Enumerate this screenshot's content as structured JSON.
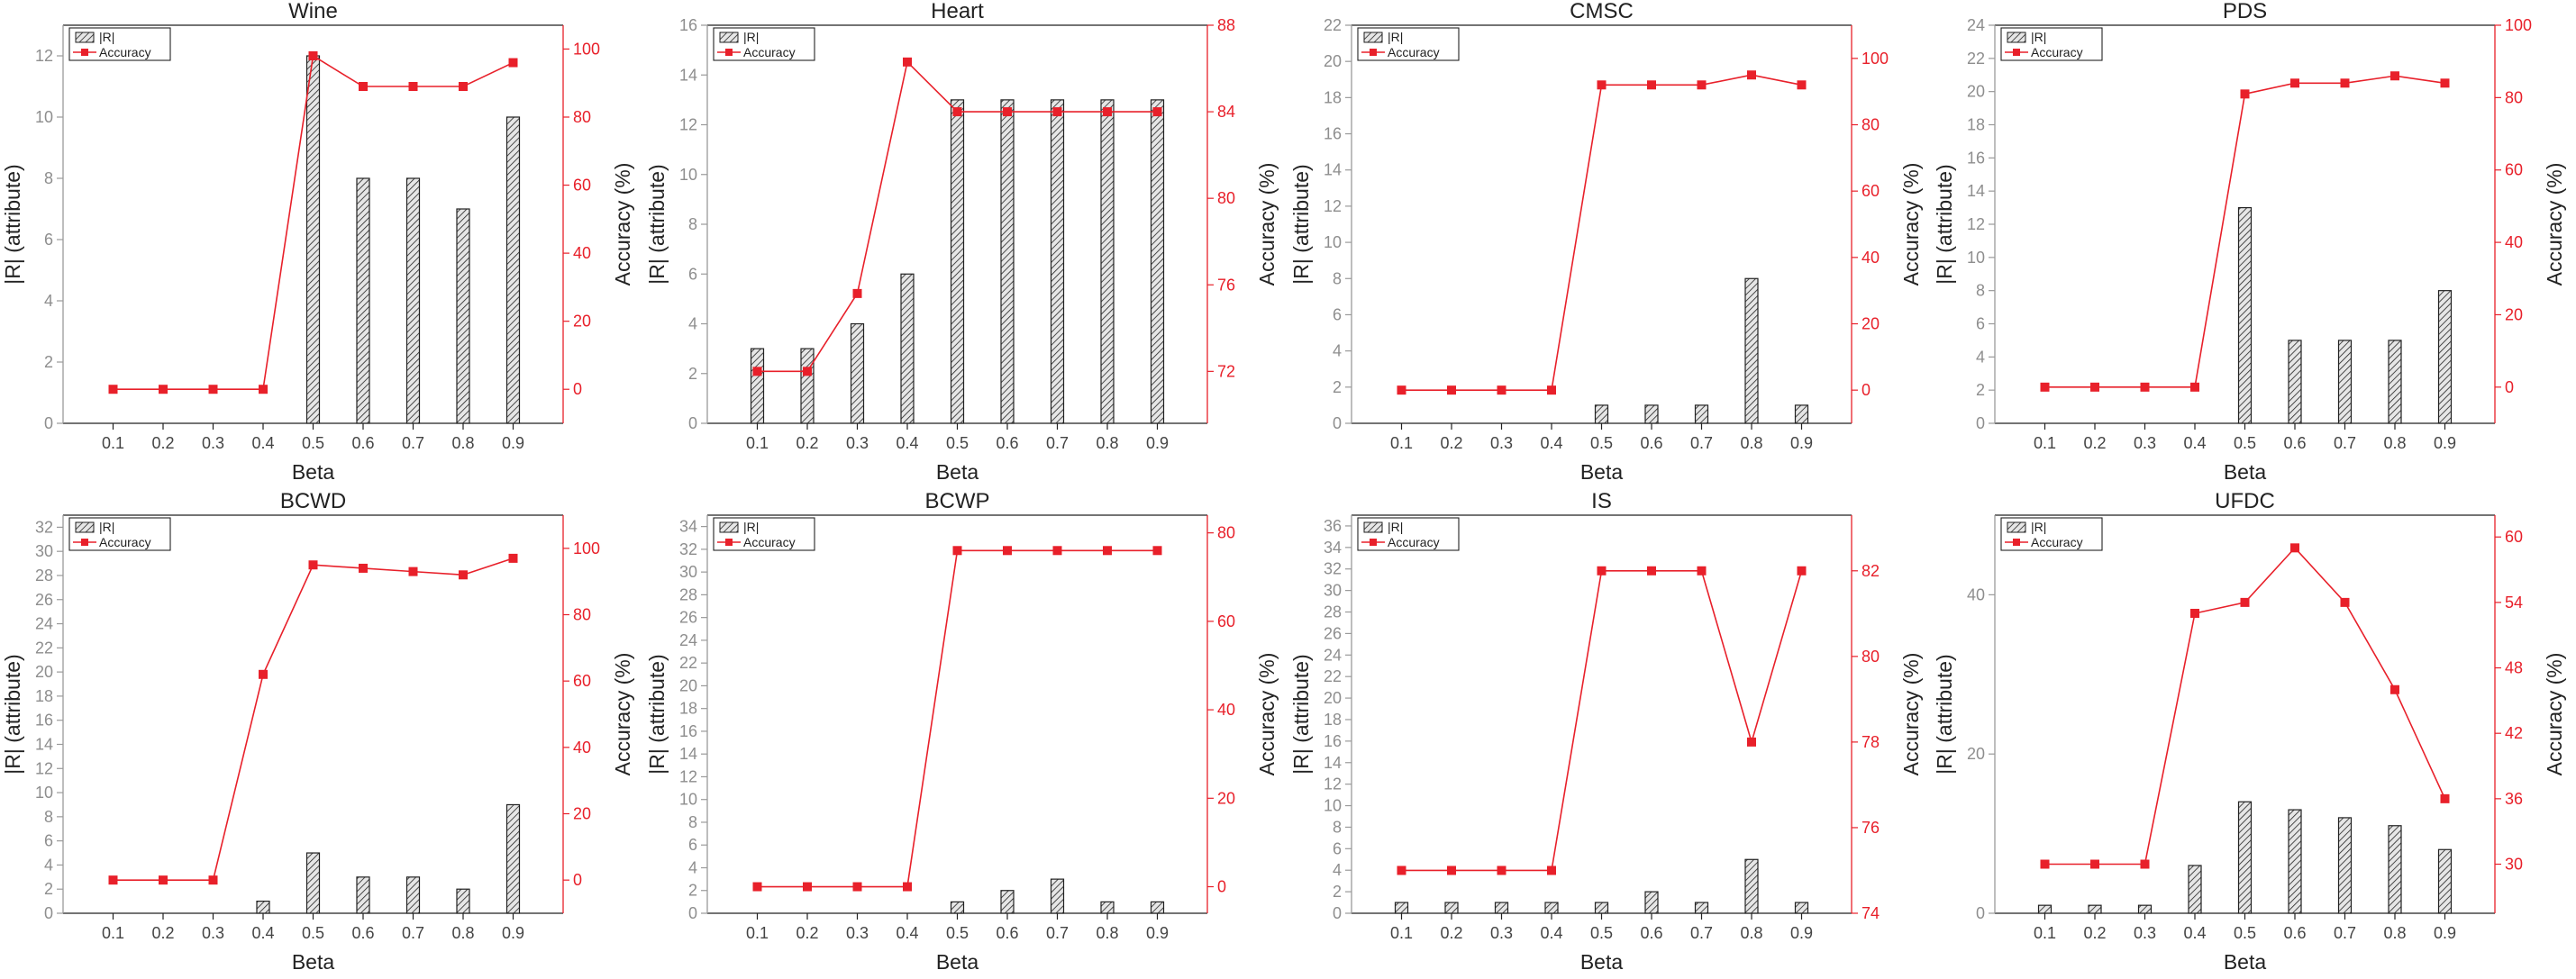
{
  "figure": {
    "x_label": "Beta",
    "left_axis_label": "|R| (attribute)",
    "right_axis_label": "Accuracy (%)",
    "legend": {
      "bar": "|R|",
      "line": "Accuracy"
    },
    "colors": {
      "accuracy": "#e8202a",
      "bar_stroke": "#222222",
      "bar_fill": "#cfcfcf",
      "left_axis": "#9a9a9a"
    }
  },
  "chart_data": [
    {
      "type": "bar+line",
      "title": "Wine",
      "xlabel": "Beta",
      "ylabel": "|R| (attribute)",
      "y2label": "Accuracy (%)",
      "categories": [
        "0.1",
        "0.2",
        "0.3",
        "0.4",
        "0.5",
        "0.6",
        "0.7",
        "0.8",
        "0.9"
      ],
      "ylim": [
        0,
        13
      ],
      "yticks": [
        0,
        2,
        4,
        6,
        8,
        10,
        12
      ],
      "y2lim": [
        -10,
        107
      ],
      "y2ticks": [
        0,
        20,
        40,
        60,
        80,
        100
      ],
      "series": [
        {
          "name": "|R|",
          "kind": "bar",
          "axis": "left",
          "values": [
            null,
            null,
            null,
            null,
            12,
            8,
            8,
            7,
            10
          ]
        },
        {
          "name": "Accuracy",
          "kind": "line",
          "axis": "right",
          "values": [
            0,
            0,
            0,
            0,
            98,
            89,
            89,
            89,
            96
          ]
        }
      ]
    },
    {
      "type": "bar+line",
      "title": "Heart",
      "xlabel": "Beta",
      "ylabel": "|R| (attribute)",
      "y2label": "Accuracy (%)",
      "categories": [
        "0.1",
        "0.2",
        "0.3",
        "0.4",
        "0.5",
        "0.6",
        "0.7",
        "0.8",
        "0.9"
      ],
      "ylim": [
        0,
        16
      ],
      "yticks": [
        0,
        2,
        4,
        6,
        8,
        10,
        12,
        14,
        16
      ],
      "y2lim": [
        69.6,
        88
      ],
      "y2ticks": [
        72,
        76,
        80,
        84,
        88
      ],
      "series": [
        {
          "name": "|R|",
          "kind": "bar",
          "axis": "left",
          "values": [
            3,
            3,
            4,
            6,
            13,
            13,
            13,
            13,
            13
          ]
        },
        {
          "name": "Accuracy",
          "kind": "line",
          "axis": "right",
          "values": [
            72,
            72,
            75.6,
            86.3,
            84,
            84,
            84,
            84,
            84
          ]
        }
      ]
    },
    {
      "type": "bar+line",
      "title": "CMSC",
      "xlabel": "Beta",
      "ylabel": "|R| (attribute)",
      "y2label": "Accuracy (%)",
      "categories": [
        "0.1",
        "0.2",
        "0.3",
        "0.4",
        "0.5",
        "0.6",
        "0.7",
        "0.8",
        "0.9"
      ],
      "ylim": [
        0,
        22
      ],
      "yticks": [
        0,
        2,
        4,
        6,
        8,
        10,
        12,
        14,
        16,
        18,
        20,
        22
      ],
      "y2lim": [
        -10,
        110
      ],
      "y2ticks": [
        0,
        20,
        40,
        60,
        80,
        100
      ],
      "series": [
        {
          "name": "|R|",
          "kind": "bar",
          "axis": "left",
          "values": [
            null,
            null,
            null,
            null,
            1,
            1,
            1,
            8,
            1
          ]
        },
        {
          "name": "Accuracy",
          "kind": "line",
          "axis": "right",
          "values": [
            0,
            0,
            0,
            0,
            92,
            92,
            92,
            95,
            92
          ]
        }
      ]
    },
    {
      "type": "bar+line",
      "title": "PDS",
      "xlabel": "Beta",
      "ylabel": "|R| (attribute)",
      "y2label": "Accuracy (%)",
      "categories": [
        "0.1",
        "0.2",
        "0.3",
        "0.4",
        "0.5",
        "0.6",
        "0.7",
        "0.8",
        "0.9"
      ],
      "ylim": [
        0,
        24
      ],
      "yticks": [
        0,
        2,
        4,
        6,
        8,
        10,
        12,
        14,
        16,
        18,
        20,
        22,
        24
      ],
      "y2lim": [
        -10,
        100
      ],
      "y2ticks": [
        0,
        20,
        40,
        60,
        80,
        100
      ],
      "series": [
        {
          "name": "|R|",
          "kind": "bar",
          "axis": "left",
          "values": [
            null,
            null,
            null,
            null,
            13,
            5,
            5,
            5,
            8
          ]
        },
        {
          "name": "Accuracy",
          "kind": "line",
          "axis": "right",
          "values": [
            0,
            0,
            0,
            0,
            81,
            84,
            84,
            86,
            84
          ]
        }
      ]
    },
    {
      "type": "bar+line",
      "title": "BCWD",
      "xlabel": "Beta",
      "ylabel": "|R| (attribute)",
      "y2label": "Accuracy (%)",
      "categories": [
        "0.1",
        "0.2",
        "0.3",
        "0.4",
        "0.5",
        "0.6",
        "0.7",
        "0.8",
        "0.9"
      ],
      "ylim": [
        0,
        33
      ],
      "yticks": [
        0,
        2,
        4,
        6,
        8,
        10,
        12,
        14,
        16,
        18,
        20,
        22,
        24,
        26,
        28,
        30,
        32
      ],
      "y2lim": [
        -10,
        110
      ],
      "y2ticks": [
        0,
        20,
        40,
        60,
        80,
        100
      ],
      "series": [
        {
          "name": "|R|",
          "kind": "bar",
          "axis": "left",
          "values": [
            null,
            null,
            null,
            1,
            5,
            3,
            3,
            2,
            9
          ]
        },
        {
          "name": "Accuracy",
          "kind": "line",
          "axis": "right",
          "values": [
            0,
            0,
            0,
            62,
            95,
            94,
            93,
            92,
            97
          ]
        }
      ]
    },
    {
      "type": "bar+line",
      "title": "BCWP",
      "xlabel": "Beta",
      "ylabel": "|R| (attribute)",
      "y2label": "Accuracy (%)",
      "categories": [
        "0.1",
        "0.2",
        "0.3",
        "0.4",
        "0.5",
        "0.6",
        "0.7",
        "0.8",
        "0.9"
      ],
      "ylim": [
        0,
        35
      ],
      "yticks": [
        0,
        2,
        4,
        6,
        8,
        10,
        12,
        14,
        16,
        18,
        20,
        22,
        24,
        26,
        28,
        30,
        32,
        34
      ],
      "y2lim": [
        -6,
        84
      ],
      "y2ticks": [
        0,
        20,
        40,
        60,
        80
      ],
      "series": [
        {
          "name": "|R|",
          "kind": "bar",
          "axis": "left",
          "values": [
            null,
            null,
            null,
            null,
            1,
            2,
            3,
            1,
            1
          ]
        },
        {
          "name": "Accuracy",
          "kind": "line",
          "axis": "right",
          "values": [
            0,
            0,
            0,
            0,
            76,
            76,
            76,
            76,
            76
          ]
        }
      ]
    },
    {
      "type": "bar+line",
      "title": "IS",
      "xlabel": "Beta",
      "ylabel": "|R| (attribute)",
      "y2label": "Accuracy (%)",
      "categories": [
        "0.1",
        "0.2",
        "0.3",
        "0.4",
        "0.5",
        "0.6",
        "0.7",
        "0.8",
        "0.9"
      ],
      "ylim": [
        0,
        37
      ],
      "yticks": [
        0,
        2,
        4,
        6,
        8,
        10,
        12,
        14,
        16,
        18,
        20,
        22,
        24,
        26,
        28,
        30,
        32,
        34,
        36
      ],
      "y2lim": [
        74,
        83.3
      ],
      "y2ticks": [
        74,
        76,
        78,
        80,
        82
      ],
      "series": [
        {
          "name": "|R|",
          "kind": "bar",
          "axis": "left",
          "values": [
            1,
            1,
            1,
            1,
            1,
            2,
            1,
            5,
            1
          ]
        },
        {
          "name": "Accuracy",
          "kind": "line",
          "axis": "right",
          "values": [
            75,
            75,
            75,
            75,
            82,
            82,
            82,
            78,
            82
          ]
        }
      ]
    },
    {
      "type": "bar+line",
      "title": "UFDC",
      "xlabel": "Beta",
      "ylabel": "|R| (attribute)",
      "y2label": "Accuracy (%)",
      "categories": [
        "0.1",
        "0.2",
        "0.3",
        "0.4",
        "0.5",
        "0.6",
        "0.7",
        "0.8",
        "0.9"
      ],
      "ylim": [
        0,
        50
      ],
      "yticks": [
        0,
        20,
        40
      ],
      "y2lim": [
        25.5,
        62
      ],
      "y2ticks": [
        30,
        36,
        42,
        48,
        54,
        60
      ],
      "series": [
        {
          "name": "|R|",
          "kind": "bar",
          "axis": "left",
          "values": [
            1,
            1,
            1,
            6,
            14,
            13,
            12,
            11,
            8
          ]
        },
        {
          "name": "Accuracy",
          "kind": "line",
          "axis": "right",
          "values": [
            30,
            30,
            30,
            53,
            54,
            59,
            54,
            46,
            36
          ]
        }
      ]
    }
  ]
}
